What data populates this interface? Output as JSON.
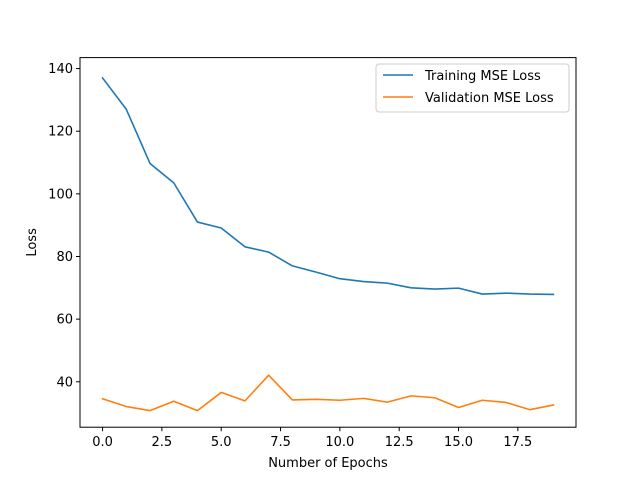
{
  "chart_data": {
    "type": "line",
    "title": "",
    "xlabel": "Number of Epochs",
    "ylabel": "Loss",
    "xlim": [
      -0.95,
      19.95
    ],
    "ylim": [
      25.5,
      143.5
    ],
    "xticks": [
      0.0,
      2.5,
      5.0,
      7.5,
      10.0,
      12.5,
      15.0,
      17.5
    ],
    "xtick_labels": [
      "0.0",
      "2.5",
      "5.0",
      "7.5",
      "10.0",
      "12.5",
      "15.0",
      "17.5"
    ],
    "yticks": [
      40,
      60,
      80,
      100,
      120,
      140
    ],
    "ytick_labels": [
      "40",
      "60",
      "80",
      "100",
      "120",
      "140"
    ],
    "grid": false,
    "legend_position": "top-right",
    "x": [
      0,
      1,
      2,
      3,
      4,
      5,
      6,
      7,
      8,
      9,
      10,
      11,
      12,
      13,
      14,
      15,
      16,
      17,
      18,
      19
    ],
    "series": [
      {
        "name": "Training MSE Loss",
        "color": "#1f77b4",
        "values": [
          137.0,
          127.0,
          109.7,
          103.5,
          91.0,
          89.1,
          83.1,
          81.4,
          77.0,
          75.0,
          72.9,
          72.0,
          71.5,
          70.0,
          69.6,
          69.9,
          68.0,
          68.3,
          68.0,
          67.9
        ]
      },
      {
        "name": "Validation MSE Loss",
        "color": "#ff7f0e",
        "values": [
          34.6,
          32.1,
          30.8,
          33.8,
          30.8,
          36.6,
          33.9,
          42.1,
          34.2,
          34.4,
          34.1,
          34.7,
          33.5,
          35.5,
          34.9,
          31.8,
          34.1,
          33.4,
          31.1,
          32.6
        ]
      }
    ]
  }
}
